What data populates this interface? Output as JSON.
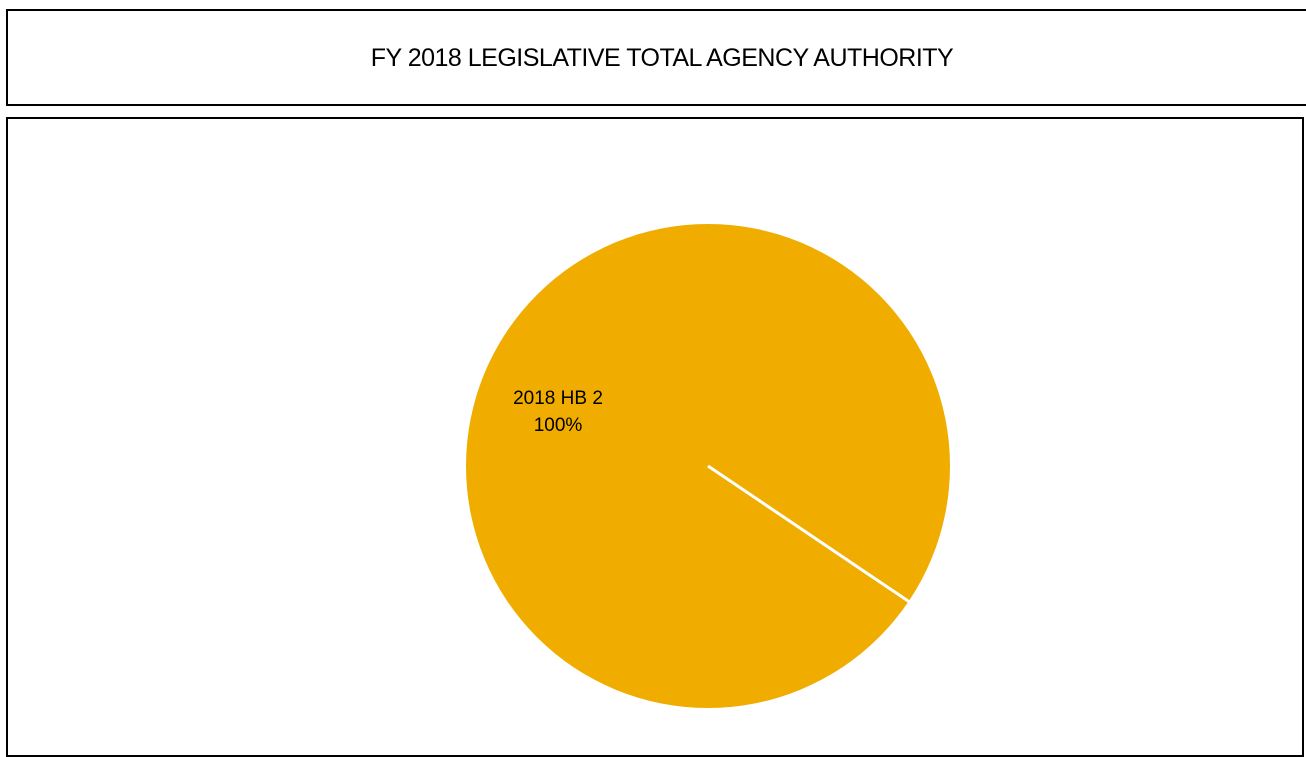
{
  "chart_data": {
    "type": "pie",
    "title": "FY 2018 LEGISLATIVE TOTAL AGENCY AUTHORITY",
    "slices": [
      {
        "label": "2018 HB 2",
        "value": 100,
        "percent_label": "100%"
      }
    ],
    "colors": {
      "slice": "#F0AD00",
      "separator": "#ffffff",
      "border": "#000000"
    }
  }
}
